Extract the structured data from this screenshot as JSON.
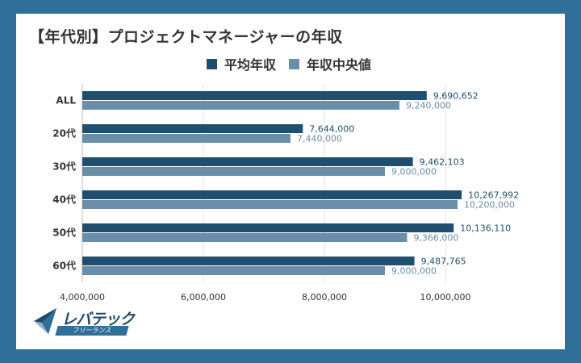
{
  "title": "【年代別】プロジェクトマネージャーの年収",
  "legend": [
    {
      "label": "平均年収",
      "color": "#1f4e6e"
    },
    {
      "label": "年収中央値",
      "color": "#6a8ea8"
    }
  ],
  "logo": {
    "main": "レバテック",
    "sub": "フリーランス"
  },
  "chart_data": {
    "type": "bar",
    "orientation": "horizontal",
    "categories": [
      "ALL",
      "20代",
      "30代",
      "40代",
      "50代",
      "60代"
    ],
    "series": [
      {
        "name": "平均年収",
        "color": "#1f4e6e",
        "label_color": "#1f4e6e",
        "values": [
          9690652,
          7644000,
          9462103,
          10267992,
          10136110,
          9487765
        ],
        "labels": [
          "9,690,652",
          "7,644,000",
          "9,462,103",
          "10,267,992",
          "10,136,110",
          "9,487,765"
        ]
      },
      {
        "name": "年収中央値",
        "color": "#6a8ea8",
        "label_color": "#6a8ea8",
        "values": [
          9240000,
          7440000,
          9000000,
          10200000,
          9366000,
          9000000
        ],
        "labels": [
          "9,240,000",
          "7,440,000",
          "9,000,000",
          "10,200,000",
          "9,366,000",
          "9,000,000"
        ]
      }
    ],
    "xlim": [
      4000000,
      10000000
    ],
    "xticks": [
      "4,000,000",
      "6,000,000",
      "8,000,000",
      "10,000,000"
    ],
    "xtick_values": [
      4000000,
      6000000,
      8000000,
      10000000
    ],
    "grid": true,
    "legend_position": "top-center"
  }
}
